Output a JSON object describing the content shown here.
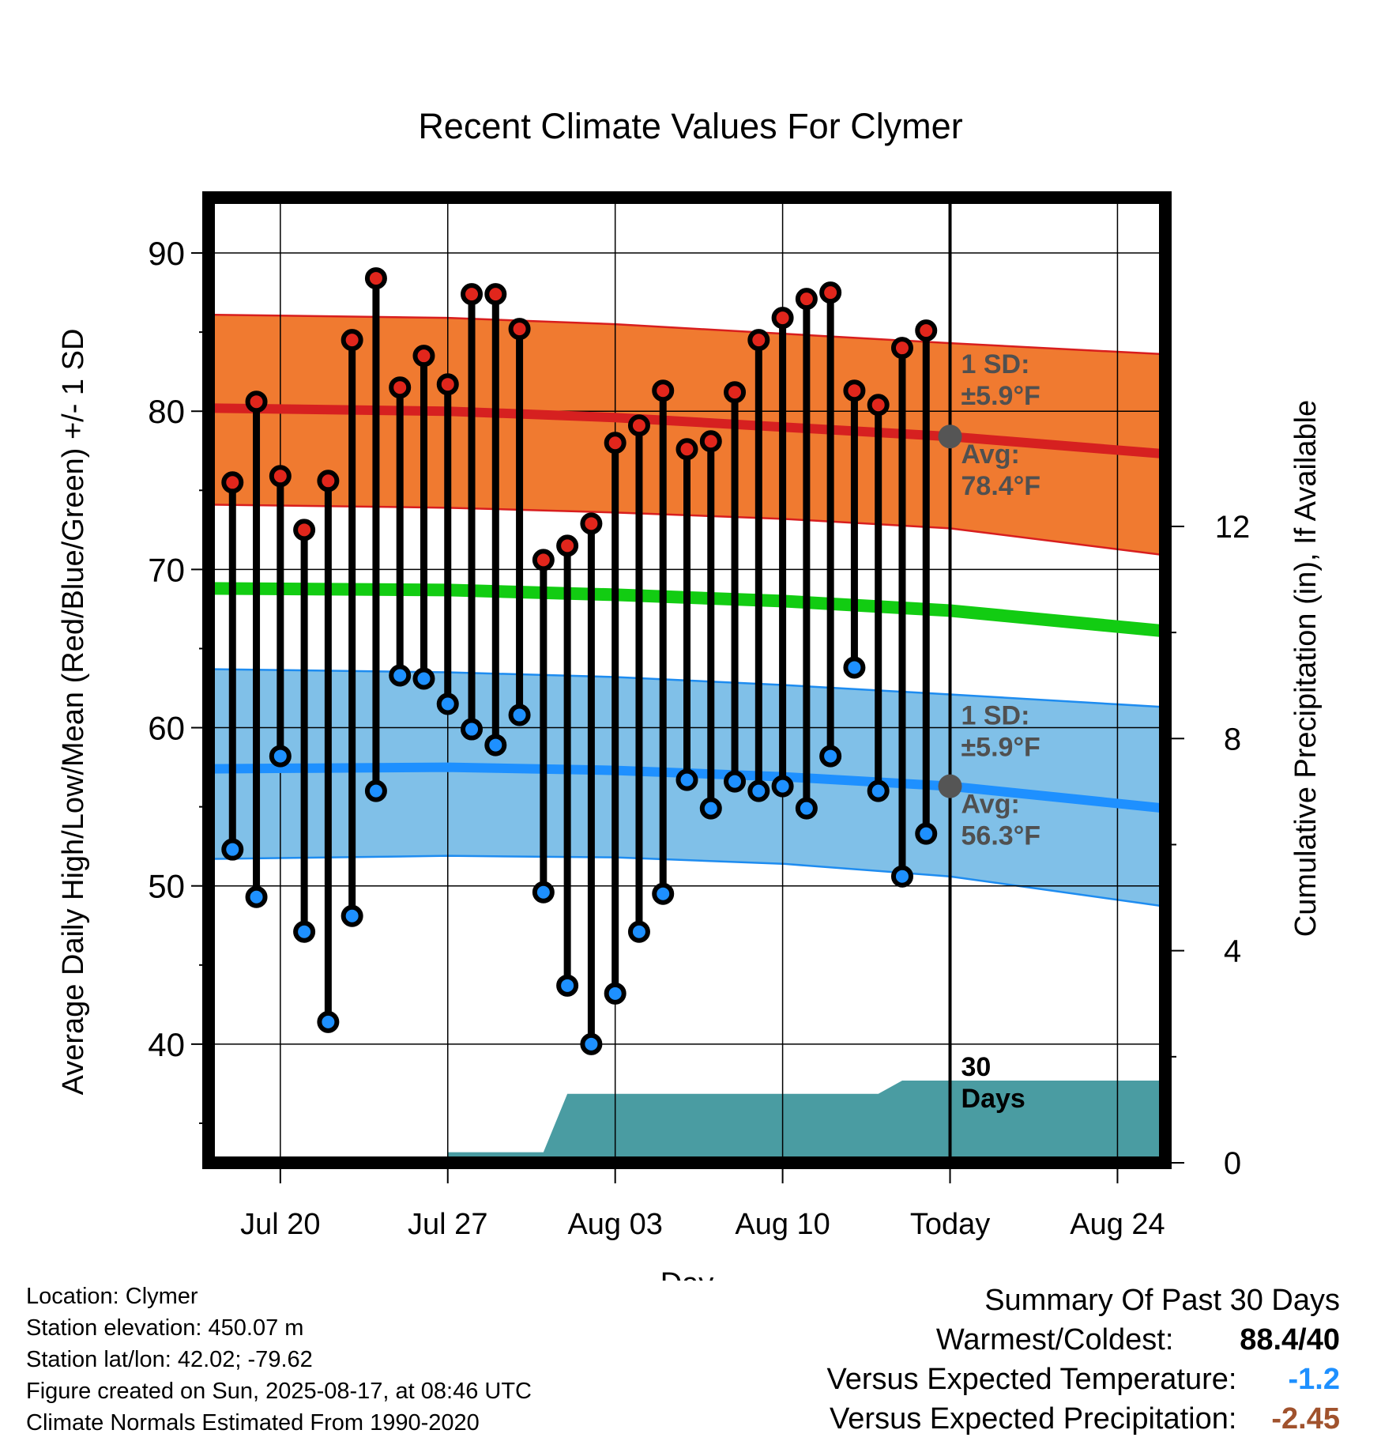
{
  "chart_data": {
    "type": "line",
    "title": "Recent Climate Values For Clymer",
    "xlabel": "Day",
    "ylabel": "Average Daily High/Low/Mean (Red/Blue/Green) +/- 1 SD",
    "ylabel_right": "Cumulative Precipitation (in), If Available",
    "x_tick_labels": [
      "Jul 20",
      "Jul 27",
      "Aug 03",
      "Aug 10",
      "Today",
      "Aug 24"
    ],
    "x_tick_dates": [
      "2025-07-20",
      "2025-07-27",
      "2025-08-03",
      "2025-08-10",
      "2025-08-17",
      "2025-08-24"
    ],
    "xlim": [
      "2025-07-17",
      "2025-08-26"
    ],
    "ylim": [
      32.5,
      93.5
    ],
    "y_ticks": [
      40,
      50,
      60,
      70,
      80,
      90
    ],
    "ylim_right": [
      0,
      18.2
    ],
    "y_ticks_right": [
      0,
      4,
      8,
      12
    ],
    "grid": true,
    "today_line": "2025-08-17",
    "dates": [
      "2025-07-18",
      "2025-07-19",
      "2025-07-20",
      "2025-07-21",
      "2025-07-22",
      "2025-07-23",
      "2025-07-24",
      "2025-07-25",
      "2025-07-26",
      "2025-07-27",
      "2025-07-28",
      "2025-07-29",
      "2025-07-30",
      "2025-07-31",
      "2025-08-01",
      "2025-08-02",
      "2025-08-03",
      "2025-08-04",
      "2025-08-05",
      "2025-08-06",
      "2025-08-07",
      "2025-08-08",
      "2025-08-09",
      "2025-08-10",
      "2025-08-11",
      "2025-08-12",
      "2025-08-13",
      "2025-08-14",
      "2025-08-15",
      "2025-08-16"
    ],
    "series": [
      {
        "name": "High",
        "color": "#e1261c",
        "values": [
          75.5,
          80.6,
          75.9,
          72.5,
          75.6,
          84.5,
          88.4,
          81.5,
          83.5,
          81.7,
          87.4,
          87.4,
          85.2,
          70.6,
          71.5,
          72.9,
          78,
          79.1,
          81.3,
          77.6,
          78.1,
          81.2,
          84.5,
          85.9,
          87.1,
          87.5,
          81.3,
          80.4,
          84,
          85.1
        ]
      },
      {
        "name": "Low",
        "color": "#1e90ff",
        "values": [
          52.3,
          49.3,
          58.2,
          47.1,
          41.4,
          48.1,
          56,
          63.3,
          63.1,
          61.5,
          59.9,
          58.9,
          60.8,
          49.6,
          43.7,
          40,
          43.2,
          47.1,
          49.5,
          56.7,
          54.9,
          56.6,
          56,
          56.3,
          54.9,
          58.2,
          63.8,
          56,
          50.6,
          53.3
        ]
      },
      {
        "name": "Normal High",
        "color": "#d62020",
        "x": [
          "2025-07-17",
          "2025-07-27",
          "2025-08-03",
          "2025-08-10",
          "2025-08-17",
          "2025-08-26"
        ],
        "values": [
          80.2,
          80,
          79.6,
          79,
          78.4,
          77.3
        ]
      },
      {
        "name": "Normal High +1 SD",
        "color": "#f07a30",
        "x": [
          "2025-07-17",
          "2025-07-27",
          "2025-08-03",
          "2025-08-10",
          "2025-08-17",
          "2025-08-26"
        ],
        "values": [
          86.1,
          85.9,
          85.5,
          84.9,
          84.3,
          83.6
        ]
      },
      {
        "name": "Normal High -1 SD",
        "color": "#f07a30",
        "x": [
          "2025-07-17",
          "2025-07-27",
          "2025-08-03",
          "2025-08-10",
          "2025-08-17",
          "2025-08-26"
        ],
        "values": [
          74.1,
          73.9,
          73.6,
          73.2,
          72.6,
          70.9
        ]
      },
      {
        "name": "Normal Mean",
        "color": "#12cc12",
        "x": [
          "2025-07-17",
          "2025-07-27",
          "2025-08-03",
          "2025-08-10",
          "2025-08-17",
          "2025-08-26"
        ],
        "values": [
          68.8,
          68.7,
          68.4,
          68,
          67.4,
          66.1
        ]
      },
      {
        "name": "Normal Low",
        "color": "#1e90ff",
        "x": [
          "2025-07-17",
          "2025-07-27",
          "2025-08-03",
          "2025-08-10",
          "2025-08-17",
          "2025-08-26"
        ],
        "values": [
          57.4,
          57.5,
          57.3,
          56.9,
          56.3,
          54.9
        ]
      },
      {
        "name": "Normal Low +1 SD",
        "color": "#7fbfea",
        "x": [
          "2025-07-17",
          "2025-07-27",
          "2025-08-03",
          "2025-08-10",
          "2025-08-17",
          "2025-08-26"
        ],
        "values": [
          63.7,
          63.5,
          63.2,
          62.7,
          62.1,
          61.3
        ]
      },
      {
        "name": "Normal Low -1 SD",
        "color": "#7fbfea",
        "x": [
          "2025-07-17",
          "2025-07-27",
          "2025-08-03",
          "2025-08-10",
          "2025-08-17",
          "2025-08-26"
        ],
        "values": [
          51.7,
          51.9,
          51.8,
          51.4,
          50.6,
          48.7
        ]
      },
      {
        "name": "Cumulative Precipitation",
        "color": "#4a9ca2",
        "axis": "right",
        "x": [
          "2025-07-17",
          "2025-07-27",
          "2025-07-27",
          "2025-07-31",
          "2025-08-01",
          "2025-08-14",
          "2025-08-15",
          "2025-08-26"
        ],
        "values": [
          0,
          0,
          0.2,
          0.2,
          1.3,
          1.3,
          1.55,
          1.55
        ]
      }
    ],
    "annotations": [
      {
        "text": [
          "1 SD:",
          "±5.9°F"
        ],
        "series": "Normal High +1 SD",
        "date": "2025-08-17"
      },
      {
        "text": [
          "Avg:",
          "78.4°F"
        ],
        "series": "Normal High",
        "date": "2025-08-17"
      },
      {
        "text": [
          "1 SD:",
          "±5.9°F"
        ],
        "series": "Normal Low +1 SD",
        "date": "2025-08-17"
      },
      {
        "text": [
          "Avg:",
          "56.3°F"
        ],
        "series": "Normal Low",
        "date": "2025-08-17"
      },
      {
        "text": [
          "30",
          "Days"
        ],
        "series": "Cumulative Precipitation",
        "date": "2025-08-17"
      }
    ]
  },
  "footer": {
    "location": "Location: Clymer",
    "elevation": "Station elevation: 450.07 m",
    "latlon": "Station lat/lon: 42.02; -79.62",
    "created": "Figure created on Sun, 2025-08-17, at 08:46 UTC",
    "normals": "Climate Normals Estimated From 1990-2020"
  },
  "summary": {
    "title": "Summary Of Past 30 Days",
    "warmest_coldest_label": "Warmest/Coldest:",
    "warmest_coldest_value": "88.4/40",
    "temp_label": "Versus Expected Temperature:",
    "temp_value": "-1.2",
    "temp_color": "#1e90ff",
    "precip_label": "Versus Expected Precipitation:",
    "precip_value": "-2.45",
    "precip_color": "#a0522d"
  }
}
